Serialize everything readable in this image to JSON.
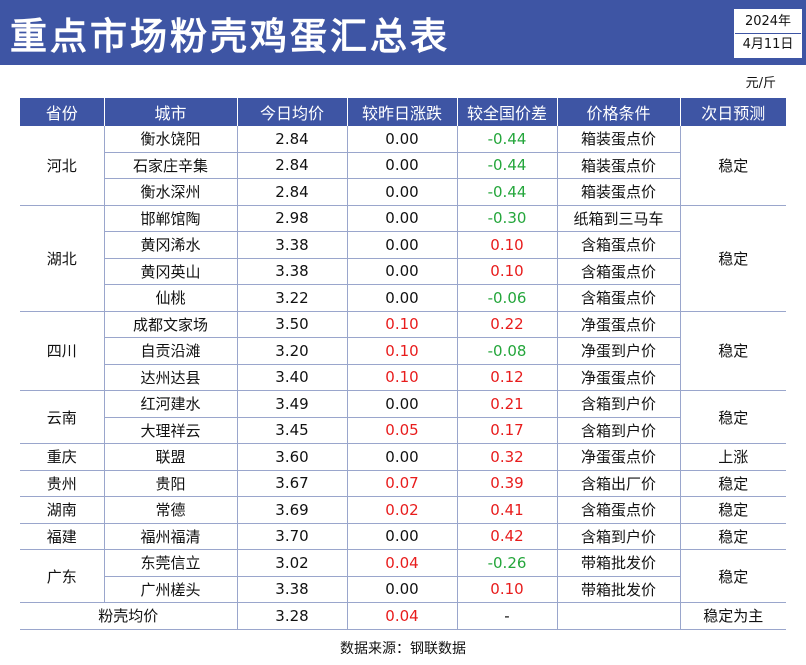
{
  "title": "重点市场粉壳鸡蛋汇总表",
  "date": {
    "year": "2024年",
    "day": "4月11日"
  },
  "unit": "元/斤",
  "colors": {
    "header_bg": "#3e55a4",
    "up": "#e81c1c",
    "down": "#24a63b"
  },
  "columns": [
    "省份",
    "城市",
    "今日均价",
    "较昨日涨跌",
    "较全国价差",
    "价格条件",
    "次日预测"
  ],
  "groups": [
    {
      "province": "河北",
      "forecast": "稳定",
      "rows": [
        {
          "city": "衡水饶阳",
          "price": "2.84",
          "change": "0.00",
          "diff": "-0.44",
          "cond": "箱装蛋点价"
        },
        {
          "city": "石家庄辛集",
          "price": "2.84",
          "change": "0.00",
          "diff": "-0.44",
          "cond": "箱装蛋点价"
        },
        {
          "city": "衡水深州",
          "price": "2.84",
          "change": "0.00",
          "diff": "-0.44",
          "cond": "箱装蛋点价"
        }
      ]
    },
    {
      "province": "湖北",
      "forecast": "稳定",
      "rows": [
        {
          "city": "邯郸馆陶",
          "price": "2.98",
          "change": "0.00",
          "diff": "-0.30",
          "cond": "纸箱到三马车"
        },
        {
          "city": "黄冈浠水",
          "price": "3.38",
          "change": "0.00",
          "diff": "0.10",
          "cond": "含箱蛋点价"
        },
        {
          "city": "黄冈英山",
          "price": "3.38",
          "change": "0.00",
          "diff": "0.10",
          "cond": "含箱蛋点价"
        },
        {
          "city": "仙桃",
          "price": "3.22",
          "change": "0.00",
          "diff": "-0.06",
          "cond": "含箱蛋点价"
        }
      ]
    },
    {
      "province": "四川",
      "forecast": "稳定",
      "rows": [
        {
          "city": "成都文家场",
          "price": "3.50",
          "change": "0.10",
          "diff": "0.22",
          "cond": "净蛋蛋点价"
        },
        {
          "city": "自贡沿滩",
          "price": "3.20",
          "change": "0.10",
          "diff": "-0.08",
          "cond": "净蛋到户价"
        },
        {
          "city": "达州达县",
          "price": "3.40",
          "change": "0.10",
          "diff": "0.12",
          "cond": "净蛋蛋点价"
        }
      ]
    },
    {
      "province": "云南",
      "forecast": "稳定",
      "rows": [
        {
          "city": "红河建水",
          "price": "3.49",
          "change": "0.00",
          "diff": "0.21",
          "cond": "含箱到户价"
        },
        {
          "city": "大理祥云",
          "price": "3.45",
          "change": "0.05",
          "diff": "0.17",
          "cond": "含箱到户价"
        }
      ]
    },
    {
      "province": "重庆",
      "forecast": "上涨",
      "rows": [
        {
          "city": "联盟",
          "price": "3.60",
          "change": "0.00",
          "diff": "0.32",
          "cond": "净蛋蛋点价"
        }
      ]
    },
    {
      "province": "贵州",
      "forecast": "稳定",
      "rows": [
        {
          "city": "贵阳",
          "price": "3.67",
          "change": "0.07",
          "diff": "0.39",
          "cond": "含箱出厂价"
        }
      ]
    },
    {
      "province": "湖南",
      "forecast": "稳定",
      "rows": [
        {
          "city": "常德",
          "price": "3.69",
          "change": "0.02",
          "diff": "0.41",
          "cond": "含箱蛋点价"
        }
      ]
    },
    {
      "province": "福建",
      "forecast": "稳定",
      "rows": [
        {
          "city": "福州福清",
          "price": "3.70",
          "change": "0.00",
          "diff": "0.42",
          "cond": "含箱到户价"
        }
      ]
    },
    {
      "province": "广东",
      "forecast": "稳定",
      "rows": [
        {
          "city": "东莞信立",
          "price": "3.02",
          "change": "0.04",
          "diff": "-0.26",
          "cond": "带箱批发价"
        },
        {
          "city": "广州槎头",
          "price": "3.38",
          "change": "0.00",
          "diff": "0.10",
          "cond": "带箱批发价"
        }
      ]
    }
  ],
  "summary": {
    "label": "粉壳均价",
    "price": "3.28",
    "change": "0.04",
    "diff": "-",
    "cond": "",
    "forecast": "稳定为主"
  },
  "source": "数据来源：钢联数据"
}
